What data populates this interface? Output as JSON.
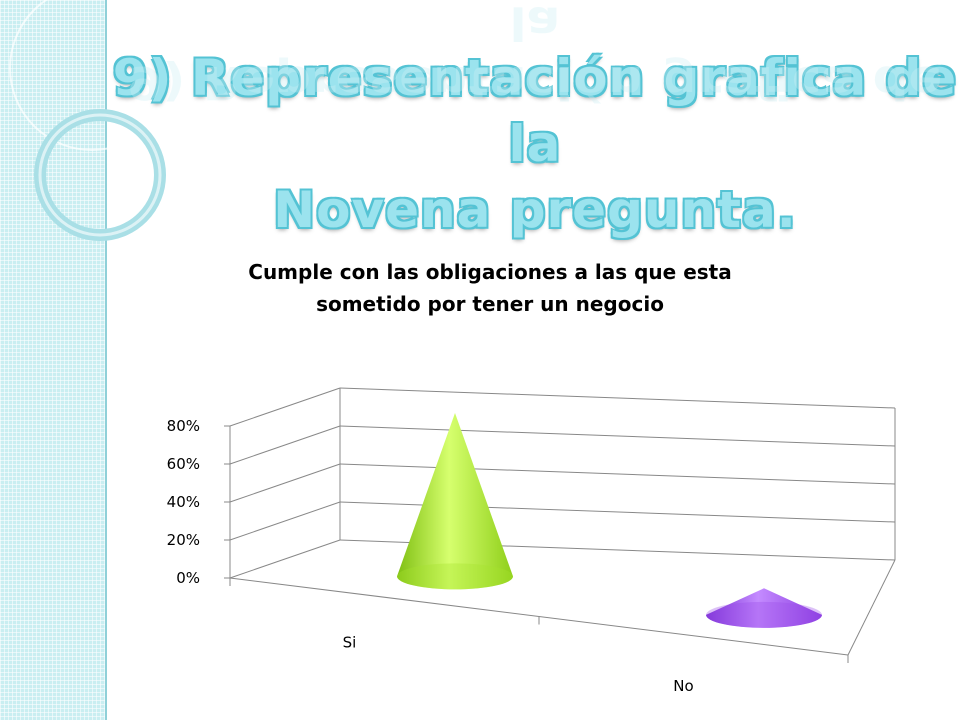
{
  "slide": {
    "title_line1": "9) Representación grafica de la",
    "title_line2": "Novena pregunta."
  },
  "chart_data": {
    "type": "bar",
    "subtype": "3d-cone",
    "title_line1": "Cumple con las obligaciones a las que esta",
    "title_line2": "sometido por tener un negocio",
    "categories": [
      "Si",
      "No"
    ],
    "values": [
      0.86,
      0.14
    ],
    "colors": [
      "#a6e22e",
      "#9a4ce8"
    ],
    "ylim": [
      0,
      0.8
    ],
    "yticks": [
      0,
      0.2,
      0.4,
      0.6,
      0.8
    ],
    "ytick_labels": [
      "0%",
      "20%",
      "40%",
      "60%",
      "80%"
    ],
    "grid": true,
    "legend": "none"
  }
}
